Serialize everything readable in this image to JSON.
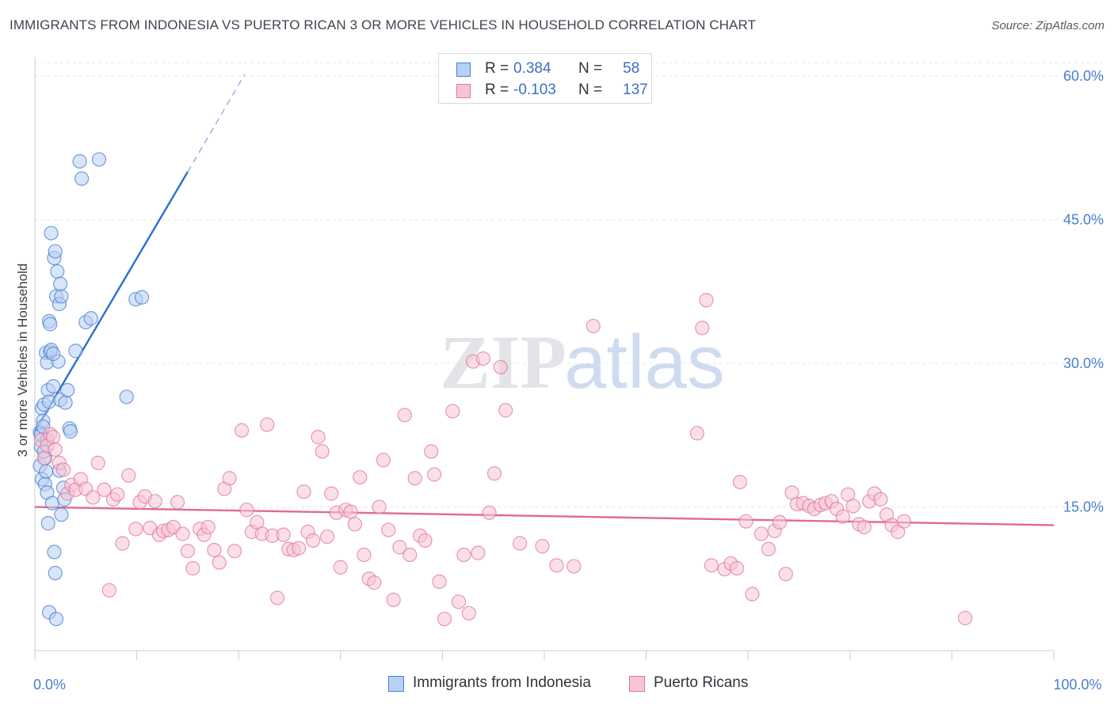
{
  "title": "IMMIGRANTS FROM INDONESIA VS PUERTO RICAN 3 OR MORE VEHICLES IN HOUSEHOLD CORRELATION CHART",
  "source": "Source: ZipAtlas.com",
  "watermark": {
    "zip": "ZIP",
    "atlas": "atlas"
  },
  "legend_top": [
    {
      "r_label": "R =",
      "r_value": "0.384",
      "n_label": "N =",
      "n_value": "58",
      "color": "#4a7fd0",
      "fill": "#b8d0f2"
    },
    {
      "r_label": "R =",
      "r_value": "-0.103",
      "n_label": "N =",
      "n_value": "137",
      "color": "#e07898",
      "fill": "#f8c4d4"
    }
  ],
  "legend_bottom": [
    {
      "label": "Immigrants from Indonesia",
      "color": "#4a7fd0",
      "fill": "#b8d0f2"
    },
    {
      "label": "Puerto Ricans",
      "color": "#e07898",
      "fill": "#f8c4d4"
    }
  ],
  "chart_data": {
    "type": "scatter",
    "xlabel": "",
    "ylabel": "3 or more Vehicles in Household",
    "xlim": [
      0,
      100
    ],
    "ylim": [
      0,
      62
    ],
    "x_tick_labels": [
      {
        "value": 0,
        "label": "0.0%"
      },
      {
        "value": 100,
        "label": "100.0%"
      }
    ],
    "y_tick_labels": [
      {
        "value": 15,
        "label": "15.0%"
      },
      {
        "value": 30,
        "label": "30.0%"
      },
      {
        "value": 45,
        "label": "45.0%"
      },
      {
        "value": 60,
        "label": "60.0%"
      }
    ],
    "x_minor_ticks": [
      0,
      10,
      20,
      30,
      40,
      50,
      60,
      70,
      80,
      90,
      100
    ],
    "grid": true,
    "series": [
      {
        "name": "Immigrants from Indonesia",
        "color": "#4a7fd0",
        "fill": "#b8d0f2",
        "trend": {
          "x0": 0,
          "y0": 22.9,
          "x1": 15,
          "y1": 50.0,
          "dash_to_x": 20.6,
          "dash_to_y": 60.2
        },
        "points": [
          [
            0.5,
            22.8
          ],
          [
            0.6,
            21.3
          ],
          [
            0.5,
            19.3
          ],
          [
            0.7,
            25.3
          ],
          [
            0.8,
            24.0
          ],
          [
            0.6,
            22.5
          ],
          [
            0.9,
            25.7
          ],
          [
            0.8,
            23.4
          ],
          [
            0.7,
            17.9
          ],
          [
            1.0,
            17.4
          ],
          [
            1.1,
            18.7
          ],
          [
            1.0,
            20.1
          ],
          [
            1.2,
            16.5
          ],
          [
            1.3,
            13.3
          ],
          [
            1.1,
            31.1
          ],
          [
            1.2,
            30.1
          ],
          [
            1.5,
            31.2
          ],
          [
            1.6,
            31.4
          ],
          [
            1.4,
            34.4
          ],
          [
            1.5,
            34.1
          ],
          [
            1.3,
            27.2
          ],
          [
            1.8,
            27.6
          ],
          [
            1.4,
            26.0
          ],
          [
            1.7,
            15.4
          ],
          [
            1.9,
            10.3
          ],
          [
            2.0,
            8.1
          ],
          [
            2.1,
            37.0
          ],
          [
            2.2,
            39.6
          ],
          [
            1.9,
            41.0
          ],
          [
            2.0,
            41.7
          ],
          [
            1.6,
            43.6
          ],
          [
            2.3,
            30.2
          ],
          [
            2.4,
            18.8
          ],
          [
            2.5,
            26.2
          ],
          [
            2.6,
            14.2
          ],
          [
            2.4,
            36.2
          ],
          [
            2.6,
            37.0
          ],
          [
            2.5,
            38.3
          ],
          [
            2.8,
            17.0
          ],
          [
            2.9,
            15.8
          ],
          [
            3.0,
            25.9
          ],
          [
            3.2,
            27.2
          ],
          [
            3.4,
            23.2
          ],
          [
            3.5,
            22.9
          ],
          [
            4.0,
            31.3
          ],
          [
            4.4,
            51.1
          ],
          [
            4.6,
            49.3
          ],
          [
            5.0,
            34.3
          ],
          [
            5.5,
            34.7
          ],
          [
            6.3,
            51.3
          ],
          [
            9.0,
            26.5
          ],
          [
            9.9,
            36.7
          ],
          [
            10.5,
            36.9
          ],
          [
            1.4,
            4.0
          ],
          [
            2.1,
            3.3
          ],
          [
            1.2,
            22.0
          ],
          [
            0.9,
            20.8
          ],
          [
            1.8,
            31.0
          ]
        ]
      },
      {
        "name": "Puerto Ricans",
        "color": "#e07898",
        "fill": "#f8c4d4",
        "trend": {
          "x0": 0,
          "y0": 15.0,
          "x1": 100,
          "y1": 13.1
        },
        "points": [
          [
            0.6,
            22.0
          ],
          [
            0.9,
            20.1
          ],
          [
            1.2,
            21.4
          ],
          [
            1.5,
            22.6
          ],
          [
            1.8,
            22.3
          ],
          [
            2.0,
            21.0
          ],
          [
            2.4,
            19.6
          ],
          [
            2.8,
            18.9
          ],
          [
            3.2,
            16.4
          ],
          [
            3.6,
            17.3
          ],
          [
            4.0,
            16.8
          ],
          [
            4.5,
            17.9
          ],
          [
            5.0,
            16.9
          ],
          [
            5.7,
            16.0
          ],
          [
            6.2,
            19.6
          ],
          [
            6.8,
            16.8
          ],
          [
            7.3,
            6.3
          ],
          [
            7.7,
            15.8
          ],
          [
            8.1,
            16.3
          ],
          [
            8.6,
            11.2
          ],
          [
            9.2,
            18.3
          ],
          [
            9.9,
            12.7
          ],
          [
            10.3,
            15.5
          ],
          [
            10.8,
            16.1
          ],
          [
            11.3,
            12.8
          ],
          [
            11.8,
            15.6
          ],
          [
            12.2,
            12.1
          ],
          [
            12.6,
            12.5
          ],
          [
            13.1,
            12.6
          ],
          [
            13.6,
            12.9
          ],
          [
            14.0,
            15.5
          ],
          [
            14.5,
            12.2
          ],
          [
            15.0,
            10.4
          ],
          [
            15.5,
            8.6
          ],
          [
            16.2,
            12.7
          ],
          [
            16.6,
            12.1
          ],
          [
            17.0,
            12.9
          ],
          [
            17.6,
            10.5
          ],
          [
            18.1,
            9.2
          ],
          [
            18.6,
            16.9
          ],
          [
            19.1,
            18.0
          ],
          [
            19.6,
            10.4
          ],
          [
            20.3,
            23.0
          ],
          [
            20.8,
            14.7
          ],
          [
            21.3,
            12.4
          ],
          [
            21.8,
            13.4
          ],
          [
            22.3,
            12.2
          ],
          [
            22.8,
            23.6
          ],
          [
            23.3,
            12.0
          ],
          [
            23.8,
            5.5
          ],
          [
            24.4,
            12.1
          ],
          [
            24.9,
            10.6
          ],
          [
            25.4,
            10.5
          ],
          [
            25.9,
            10.7
          ],
          [
            26.4,
            16.6
          ],
          [
            26.8,
            12.4
          ],
          [
            27.3,
            11.5
          ],
          [
            27.8,
            22.3
          ],
          [
            28.2,
            20.8
          ],
          [
            28.7,
            11.9
          ],
          [
            29.1,
            16.4
          ],
          [
            29.6,
            14.4
          ],
          [
            30.0,
            8.7
          ],
          [
            30.5,
            14.7
          ],
          [
            31.0,
            14.5
          ],
          [
            31.4,
            13.2
          ],
          [
            31.9,
            18.1
          ],
          [
            32.3,
            10.0
          ],
          [
            32.8,
            7.5
          ],
          [
            33.3,
            7.1
          ],
          [
            33.8,
            15.0
          ],
          [
            34.2,
            19.9
          ],
          [
            34.7,
            12.6
          ],
          [
            35.2,
            5.3
          ],
          [
            35.8,
            10.8
          ],
          [
            36.3,
            24.6
          ],
          [
            36.8,
            10.0
          ],
          [
            37.3,
            18.0
          ],
          [
            37.8,
            12.0
          ],
          [
            38.3,
            11.5
          ],
          [
            38.9,
            20.8
          ],
          [
            39.2,
            18.4
          ],
          [
            39.7,
            7.2
          ],
          [
            40.2,
            3.3
          ],
          [
            41.0,
            25.0
          ],
          [
            41.6,
            5.1
          ],
          [
            42.1,
            10.0
          ],
          [
            42.6,
            3.9
          ],
          [
            43.0,
            30.2
          ],
          [
            43.5,
            10.2
          ],
          [
            44.0,
            30.5
          ],
          [
            44.6,
            14.4
          ],
          [
            45.1,
            18.5
          ],
          [
            45.7,
            29.6
          ],
          [
            46.2,
            25.1
          ],
          [
            47.6,
            11.2
          ],
          [
            49.8,
            10.9
          ],
          [
            51.2,
            8.9
          ],
          [
            52.9,
            8.8
          ],
          [
            54.8,
            33.9
          ],
          [
            65.0,
            22.7
          ],
          [
            65.5,
            33.7
          ],
          [
            65.9,
            36.6
          ],
          [
            66.4,
            8.9
          ],
          [
            67.7,
            8.5
          ],
          [
            68.3,
            9.1
          ],
          [
            68.9,
            8.6
          ],
          [
            69.2,
            17.6
          ],
          [
            69.8,
            13.5
          ],
          [
            70.4,
            5.9
          ],
          [
            71.3,
            12.2
          ],
          [
            72.0,
            10.6
          ],
          [
            72.6,
            12.5
          ],
          [
            73.1,
            13.4
          ],
          [
            73.7,
            8.0
          ],
          [
            74.3,
            16.5
          ],
          [
            74.8,
            15.3
          ],
          [
            75.4,
            15.4
          ],
          [
            76.0,
            15.1
          ],
          [
            76.5,
            14.8
          ],
          [
            77.1,
            15.2
          ],
          [
            77.6,
            15.4
          ],
          [
            78.2,
            15.6
          ],
          [
            78.7,
            14.8
          ],
          [
            79.3,
            14.0
          ],
          [
            79.8,
            16.3
          ],
          [
            80.3,
            15.1
          ],
          [
            80.9,
            13.2
          ],
          [
            81.4,
            12.9
          ],
          [
            81.9,
            15.6
          ],
          [
            82.4,
            16.4
          ],
          [
            83.0,
            15.8
          ],
          [
            83.6,
            14.2
          ],
          [
            84.1,
            13.1
          ],
          [
            84.7,
            12.4
          ],
          [
            85.3,
            13.5
          ],
          [
            91.3,
            3.4
          ]
        ]
      }
    ]
  }
}
